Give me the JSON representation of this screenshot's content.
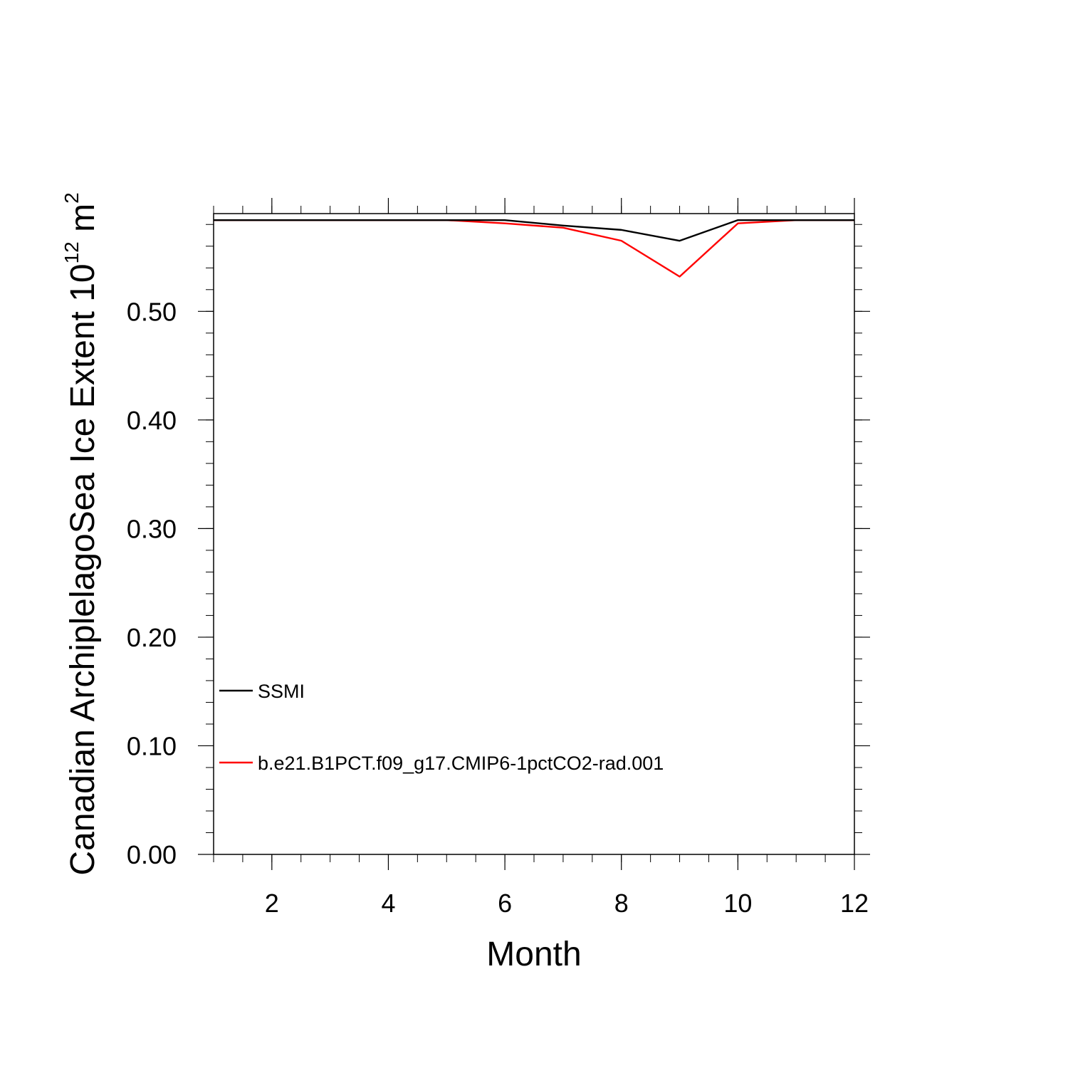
{
  "chart_data": {
    "type": "line",
    "xlabel": "Month",
    "ylabel": {
      "main": "Canadian ArchiplelagoSea Ice Extent 10",
      "exponent": "12",
      "unit_base": " m",
      "unit_exponent": "2"
    },
    "xlim": [
      1,
      12
    ],
    "ylim": [
      0,
      0.59
    ],
    "x_ticks": [
      2,
      4,
      6,
      8,
      10,
      12
    ],
    "x_tick_labels": [
      "2",
      "4",
      "6",
      "8",
      "10",
      "12"
    ],
    "x_minor_step": 0.5,
    "y_ticks": [
      0.0,
      0.1,
      0.2,
      0.3,
      0.4,
      0.5
    ],
    "y_tick_labels": [
      "0.00",
      "0.10",
      "0.20",
      "0.30",
      "0.40",
      "0.50"
    ],
    "y_minor_step": 0.02,
    "grid": false,
    "legend_position": "lower-left",
    "series": [
      {
        "name": "SSMI",
        "color": "#000000",
        "x": [
          1,
          2,
          3,
          4,
          5,
          6,
          7,
          8,
          9,
          10,
          11,
          12
        ],
        "y": [
          0.584,
          0.584,
          0.584,
          0.584,
          0.584,
          0.584,
          0.579,
          0.575,
          0.565,
          0.584,
          0.584,
          0.584
        ]
      },
      {
        "name": "b.e21.B1PCT.f09_g17.CMIP6-1pctCO2-rad.001",
        "color": "#ff0000",
        "x": [
          1,
          2,
          3,
          4,
          5,
          6,
          7,
          8,
          9,
          10,
          11,
          12
        ],
        "y": [
          0.584,
          0.584,
          0.584,
          0.584,
          0.584,
          0.581,
          0.577,
          0.565,
          0.532,
          0.581,
          0.584,
          0.584
        ]
      }
    ]
  }
}
